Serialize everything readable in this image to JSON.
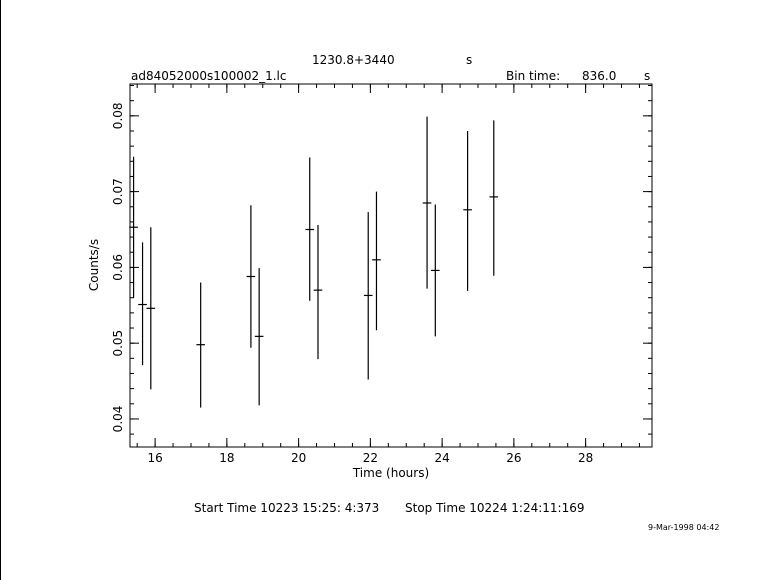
{
  "header": {
    "source": "1230.8+3440",
    "source_unit": "s",
    "file": "ad84052000s100002_1.lc",
    "bin_label": "Bin time:",
    "bin_value": "836.0",
    "bin_unit": "s"
  },
  "footer": {
    "start": "Start Time 10223 15:25: 4:373",
    "stop": "Stop Time 10224  1:24:11:169",
    "date": "9-Mar-1998 04:42"
  },
  "chart_data": {
    "type": "scatter",
    "xlabel": "Time (hours)",
    "ylabel": "Counts/s",
    "xlim": [
      15.3,
      29.85
    ],
    "ylim": [
      0.0363,
      0.0842
    ],
    "x_ticks": [
      16,
      18,
      20,
      22,
      24,
      26,
      28
    ],
    "y_ticks": [
      0.04,
      0.05,
      0.06,
      0.07,
      0.08
    ],
    "x_tick_labels": [
      "16",
      "18",
      "20",
      "22",
      "24",
      "26",
      "28"
    ],
    "y_tick_labels": [
      "0.04",
      "0.05",
      "0.06",
      "0.07",
      "0.08"
    ],
    "x_minor_step": 0.5,
    "y_minor_step": 0.002,
    "series": [
      {
        "x": [
          15.4,
          15.65,
          15.88,
          17.27,
          18.67,
          18.9,
          20.31,
          20.54,
          21.94,
          22.17,
          23.58,
          23.81,
          24.71,
          25.44
        ],
        "y": [
          0.0653,
          0.0551,
          0.0546,
          0.0498,
          0.0588,
          0.0509,
          0.065,
          0.057,
          0.0563,
          0.061,
          0.0685,
          0.0596,
          0.0676,
          0.0693
        ],
        "xerr": [
          0.12,
          0.12,
          0.12,
          0.12,
          0.12,
          0.12,
          0.12,
          0.12,
          0.12,
          0.12,
          0.12,
          0.12,
          0.12,
          0.12
        ],
        "ylow": [
          0.056,
          0.0471,
          0.0439,
          0.0415,
          0.0494,
          0.0418,
          0.0556,
          0.0479,
          0.0452,
          0.0517,
          0.0572,
          0.0509,
          0.0569,
          0.0589
        ],
        "yhigh": [
          0.0746,
          0.0633,
          0.0653,
          0.058,
          0.0682,
          0.0599,
          0.0745,
          0.0656,
          0.0673,
          0.07,
          0.0799,
          0.0683,
          0.078,
          0.0794
        ]
      }
    ]
  }
}
